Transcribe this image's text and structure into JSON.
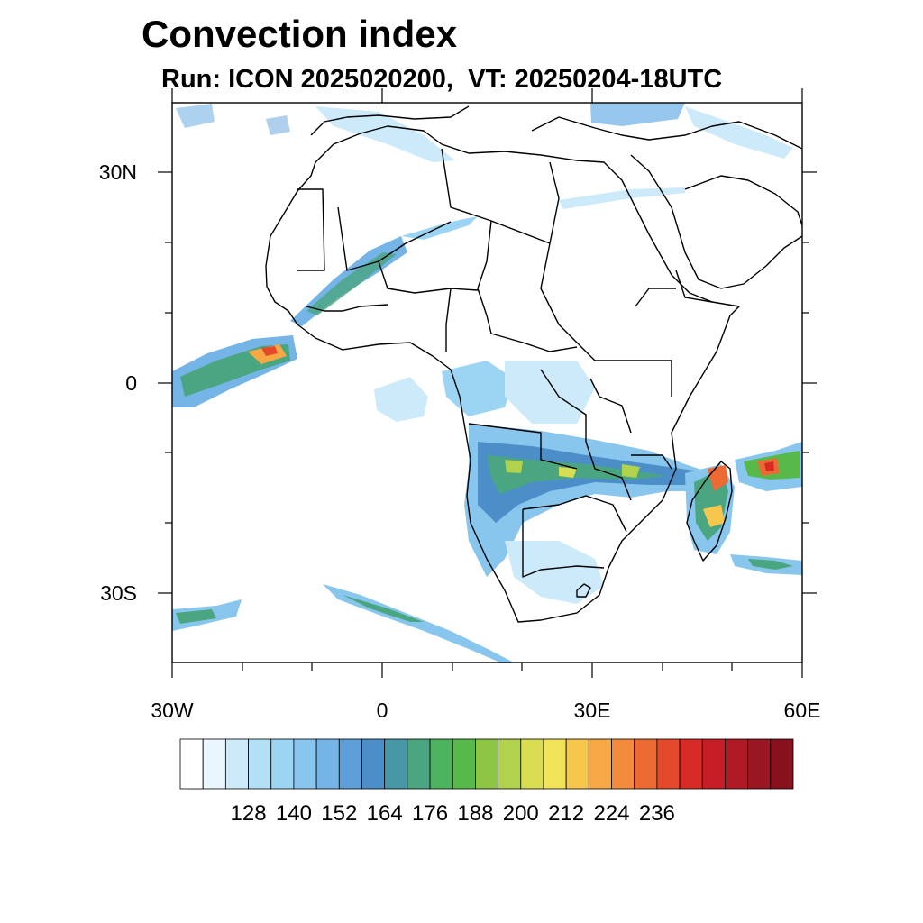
{
  "title": "Convection index",
  "subtitle": "Run: ICON 2025020200,  VT: 20250204-18UTC",
  "map": {
    "lat_labels": [
      "30N",
      "0",
      "30S"
    ],
    "lon_labels": [
      "30W",
      "0",
      "30E",
      "60E"
    ],
    "extent": {
      "lon_min": -30,
      "lon_max": 60,
      "lat_min": -40,
      "lat_max": 40
    }
  },
  "colorbar": {
    "labels": [
      "128",
      "140",
      "152",
      "164",
      "176",
      "188",
      "200",
      "212",
      "224",
      "236"
    ],
    "colors": [
      "#ffffff",
      "#e9f6fd",
      "#cceafa",
      "#b4e0f7",
      "#9cd4f4",
      "#88c6ee",
      "#74b4e6",
      "#5f9fd9",
      "#4c8ec8",
      "#4897a7",
      "#4aa581",
      "#4db35e",
      "#56b94a",
      "#8cc644",
      "#b1d24c",
      "#d8dd52",
      "#f0e35a",
      "#f7c64c",
      "#f5a843",
      "#f38b3d",
      "#ee6a33",
      "#e5492b",
      "#d92b26",
      "#c71d27",
      "#b01a26",
      "#9a1622",
      "#87121d"
    ]
  }
}
